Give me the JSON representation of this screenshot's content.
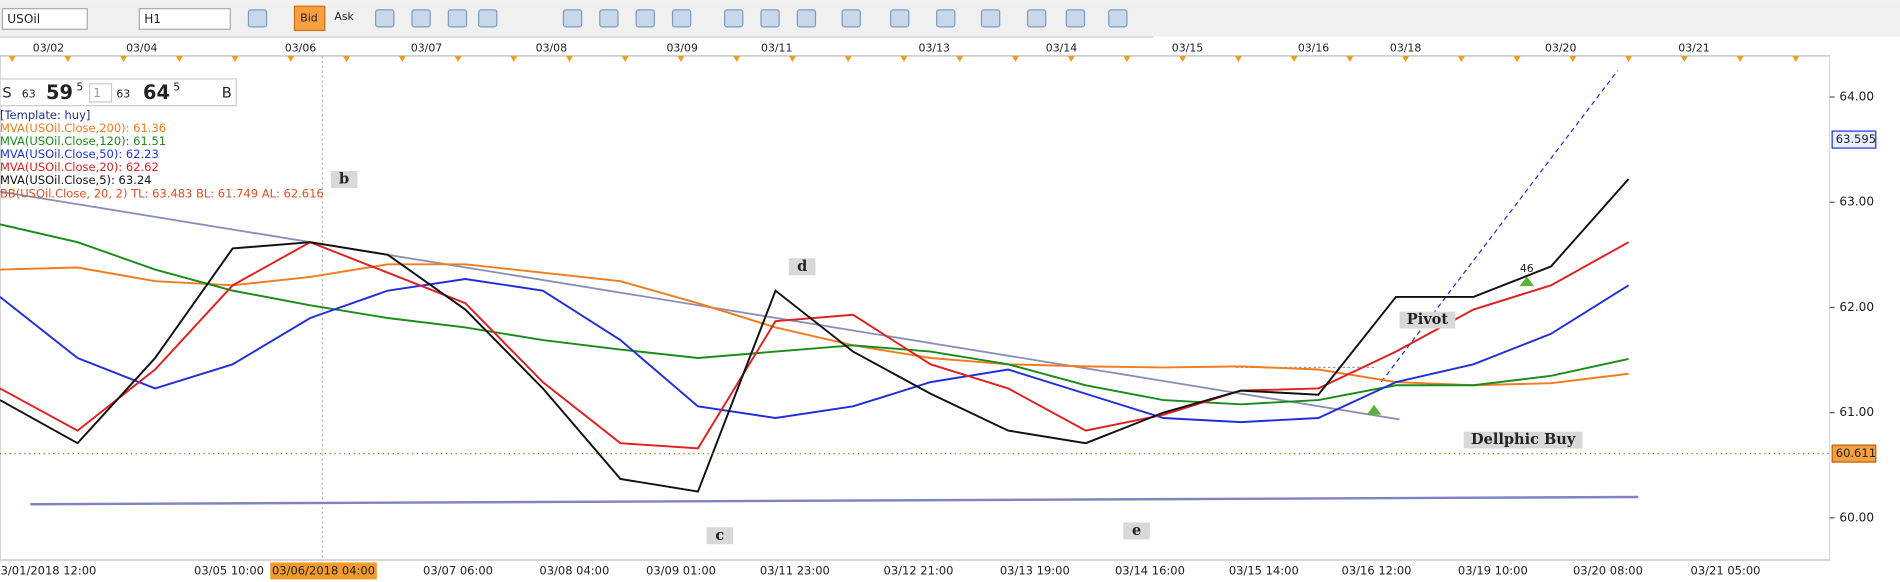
{
  "toolbar": {
    "symbol": "USOil",
    "timeframe": "H1",
    "bid": "Bid",
    "ask": "Ask"
  },
  "quote": {
    "sell_label": "S",
    "sell_big_prefix": "63",
    "sell_big": "59",
    "sell_pip": "5",
    "amount": "1",
    "buy_big_prefix": "63",
    "buy_big": "64",
    "buy_pip": "5",
    "buy_label": "B"
  },
  "legend": [
    "[Template: huy]",
    "MVA(USOil.Close,200): 61.36",
    "MVA(USOil.Close,120): 61.51",
    "MVA(USOil.Close,50): 62.23",
    "MVA(USOil.Close,20): 62.62",
    "MVA(USOil.Close,5): 63.24",
    "BB(USOil.Close, 20, 2)  TL: 63.483  BL: 61.749  AL: 62.616"
  ],
  "annotations": {
    "b": "b",
    "c": "c",
    "d": "d",
    "e": "e",
    "pivot": "Pivot",
    "buy": "Dellphic Buy",
    "count": "46"
  },
  "chart_data": {
    "type": "line",
    "top_dates": [
      "03/02",
      "03/04",
      "03/06",
      "03/07",
      "03/08",
      "03/09",
      "03/11",
      "03/13",
      "03/14",
      "03/15",
      "03/16",
      "03/18",
      "03/20",
      "03/21"
    ],
    "xtick_labels": [
      "03/01/2018 12:00",
      "03/05 10:00",
      "03/06/2018 04:00",
      "03/07 06:00",
      "03/08 04:00",
      "03/09 01:00",
      "03/11 23:00",
      "03/12 21:00",
      "03/13 19:00",
      "03/14 16:00",
      "03/15 14:00",
      "03/16 12:00",
      "03/19 10:00",
      "03/20 08:00",
      "03/21 05:00"
    ],
    "ylim": [
      59.6,
      64.39
    ],
    "yticks": [
      {
        "value": 60,
        "label": "60.00"
      },
      {
        "value": 61,
        "label": "61.00"
      },
      {
        "value": 62,
        "label": "62.00"
      },
      {
        "value": 63,
        "label": "63.00"
      },
      {
        "value": 64,
        "label": "64.00"
      }
    ],
    "price_tags": [
      63.595,
      60.611
    ],
    "series": [
      {
        "name": "MVA200",
        "color": "#f07c1c",
        "values": [
          62.36,
          62.38,
          62.25,
          62.21,
          62.29,
          62.41,
          62.41,
          62.33,
          62.25,
          62.04,
          61.81,
          61.64,
          61.52,
          61.46,
          61.44,
          61.43,
          61.44,
          61.41,
          61.29,
          61.26,
          61.28,
          61.37
        ]
      },
      {
        "name": "MVA120",
        "color": "#1a8c1a",
        "values": [
          62.79,
          62.62,
          62.36,
          62.16,
          62.02,
          61.9,
          61.81,
          61.69,
          61.6,
          61.52,
          61.58,
          61.64,
          61.58,
          61.46,
          61.26,
          61.12,
          61.08,
          61.12,
          61.26,
          61.26,
          61.35,
          61.51
        ]
      },
      {
        "name": "MVA50",
        "color": "#2030d8",
        "values": [
          62.1,
          61.52,
          61.23,
          61.46,
          61.9,
          62.16,
          62.27,
          62.16,
          61.69,
          61.06,
          60.95,
          61.06,
          61.29,
          61.41,
          61.18,
          60.95,
          60.91,
          60.95,
          61.29,
          61.46,
          61.75,
          62.21
        ]
      },
      {
        "name": "MVA20",
        "color": "#e02020",
        "values": [
          61.23,
          60.83,
          61.41,
          62.21,
          62.62,
          62.33,
          62.04,
          61.29,
          60.71,
          60.66,
          61.87,
          61.93,
          61.46,
          61.23,
          60.83,
          60.98,
          61.21,
          61.23,
          61.58,
          61.98,
          62.21,
          62.62
        ]
      },
      {
        "name": "MVA5",
        "color": "#111111",
        "values": [
          61.12,
          60.71,
          61.52,
          62.56,
          62.62,
          62.5,
          61.98,
          61.23,
          60.37,
          60.25,
          62.16,
          61.58,
          61.18,
          60.83,
          60.71,
          61.0,
          61.21,
          61.17,
          62.1,
          62.1,
          62.39,
          63.22
        ]
      }
    ]
  }
}
